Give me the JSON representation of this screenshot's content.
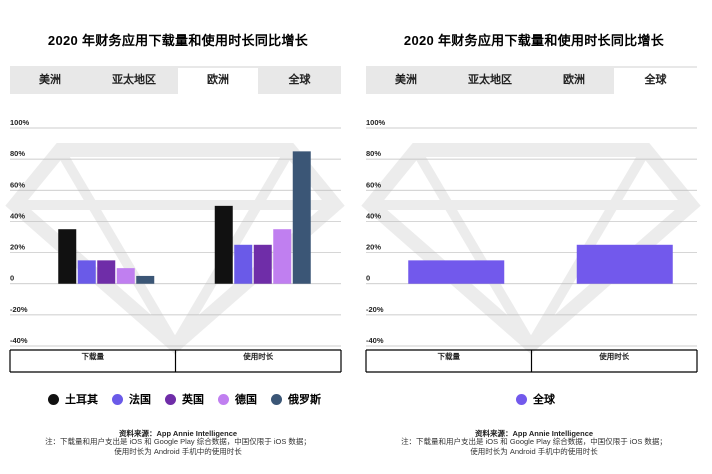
{
  "panels": [
    {
      "title": "2020 年财务应用下载量和使用时长同比增长",
      "tabs": [
        "美洲",
        "亚太地区",
        "欧洲",
        "全球"
      ],
      "active_tab": "欧洲"
    },
    {
      "title": "2020 年财务应用下载量和使用时长同比增长",
      "tabs": [
        "美洲",
        "亚太地区",
        "欧洲",
        "全球"
      ],
      "active_tab": "全球"
    }
  ],
  "source": "资料来源：App Annie Intelligence",
  "note_line1": "注：下载量和用户支出是 iOS 和 Google Play 综合数据，中国仅限于 iOS 数据；",
  "note_line2": "使用时长为 Android 手机中的使用时长",
  "chart_data": [
    {
      "type": "bar",
      "title": "2020 年财务应用下载量和使用时长同比增长",
      "categories": [
        "下载量",
        "使用时长"
      ],
      "ylim": [
        -40,
        100
      ],
      "yticks": [
        -40,
        -20,
        0,
        20,
        40,
        60,
        80,
        100
      ],
      "ytick_labels": [
        "-40%",
        "-20%",
        "0",
        "20%",
        "40%",
        "60%",
        "80%",
        "100%"
      ],
      "series": [
        {
          "name": "土耳其",
          "color": "#111111",
          "values": [
            35,
            50
          ]
        },
        {
          "name": "法国",
          "color": "#6a5ae8",
          "values": [
            15,
            25
          ]
        },
        {
          "name": "英国",
          "color": "#6f2da8",
          "values": [
            15,
            25
          ]
        },
        {
          "name": "德国",
          "color": "#c07ff0",
          "values": [
            10,
            35
          ]
        },
        {
          "name": "俄罗斯",
          "color": "#3b5676",
          "values": [
            5,
            85
          ]
        }
      ]
    },
    {
      "type": "bar",
      "title": "2020 年财务应用下载量和使用时长同比增长",
      "categories": [
        "下载量",
        "使用时长"
      ],
      "ylim": [
        -40,
        100
      ],
      "yticks": [
        -40,
        -20,
        0,
        20,
        40,
        60,
        80,
        100
      ],
      "ytick_labels": [
        "-40%",
        "-20%",
        "0",
        "20%",
        "40%",
        "60%",
        "80%",
        "100%"
      ],
      "series": [
        {
          "name": "全球",
          "color": "#7259ec",
          "values": [
            15,
            25
          ]
        }
      ]
    }
  ]
}
